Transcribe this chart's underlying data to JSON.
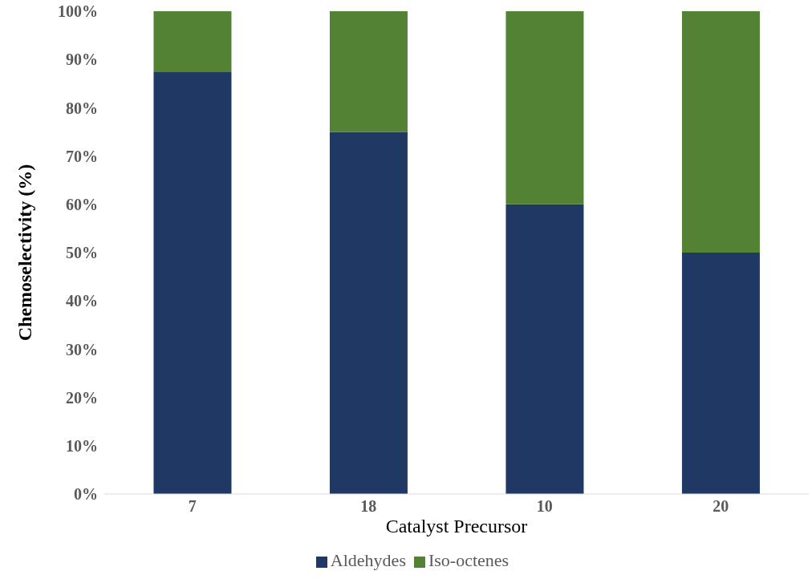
{
  "chart_data": {
    "type": "bar",
    "stacked": true,
    "xlabel": "Catalyst Precursor",
    "ylabel": "Chemoselectivity (%)",
    "categories": [
      "7",
      "18",
      "10",
      "20"
    ],
    "series": [
      {
        "name": "Aldehydes",
        "color": "#203864",
        "values": [
          87.5,
          75,
          60,
          50
        ]
      },
      {
        "name": "Iso-octenes",
        "color": "#548235",
        "values": [
          12.5,
          25,
          40,
          50
        ]
      }
    ],
    "ylim": [
      0,
      100
    ],
    "yticks": [
      {
        "value": 0,
        "label": "0%"
      },
      {
        "value": 10,
        "label": "10%"
      },
      {
        "value": 20,
        "label": "20%"
      },
      {
        "value": 30,
        "label": "30%"
      },
      {
        "value": 40,
        "label": "40%"
      },
      {
        "value": 50,
        "label": "50%"
      },
      {
        "value": 60,
        "label": "60%"
      },
      {
        "value": 70,
        "label": "70%"
      },
      {
        "value": 80,
        "label": "80%"
      },
      {
        "value": 90,
        "label": "90%"
      },
      {
        "value": 100,
        "label": "100%"
      }
    ],
    "grid": false,
    "legend": "bottom"
  }
}
